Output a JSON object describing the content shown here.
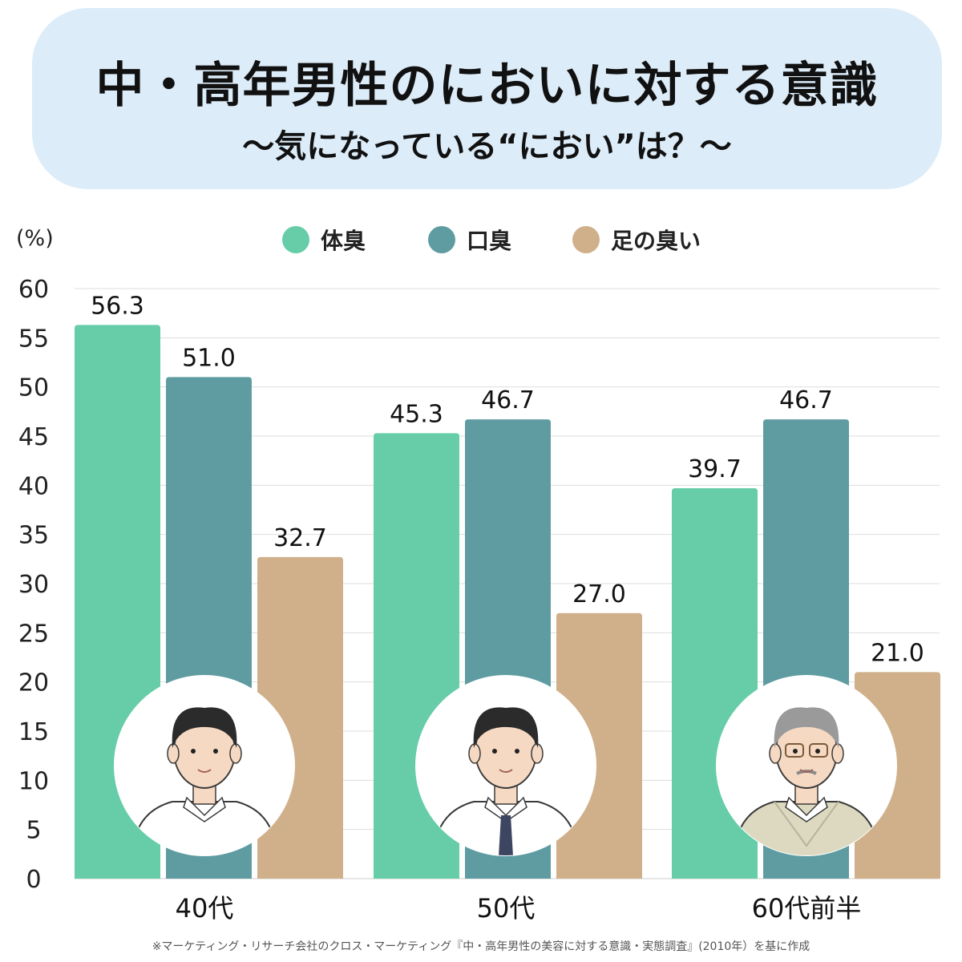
{
  "title": "中・高年男性のにおいに対する意識",
  "subtitle": "〜気になっている“におい”は？〜",
  "footnote": "※マーケティング・リサーチ会社のクロス・マーケティング『中・高年男性の美容に対する意識・実態調査』(2010年）を基に作成",
  "colors": {
    "title_bg": "#dcecf8",
    "series": [
      "#66cda8",
      "#5e9ca2",
      "#d0b08a"
    ],
    "grid": "#dddddd",
    "avatar_bg": "#ffffff"
  },
  "chart_data": {
    "type": "bar",
    "title": "",
    "ylabel": "(%)",
    "xlabel": "",
    "ylim": [
      0,
      60
    ],
    "yticks": [
      0,
      5,
      10,
      15,
      20,
      25,
      30,
      35,
      40,
      45,
      50,
      55,
      60
    ],
    "grid": true,
    "legend_position": "top",
    "categories": [
      "40代",
      "50代",
      "60代前半"
    ],
    "series": [
      {
        "name": "体臭",
        "values": [
          56.3,
          45.3,
          39.7
        ],
        "labels": [
          "56.3",
          "45.3",
          "39.7"
        ]
      },
      {
        "name": "口臭",
        "values": [
          51.0,
          46.7,
          46.7
        ],
        "labels": [
          "51.0",
          "46.7",
          "46.7"
        ]
      },
      {
        "name": "足の臭い",
        "values": [
          32.7,
          27.0,
          21.0
        ],
        "labels": [
          "32.7",
          "27.0",
          "21.0"
        ]
      }
    ],
    "category_images": [
      "man-40s-avatar",
      "man-50s-avatar",
      "man-60s-avatar"
    ]
  }
}
